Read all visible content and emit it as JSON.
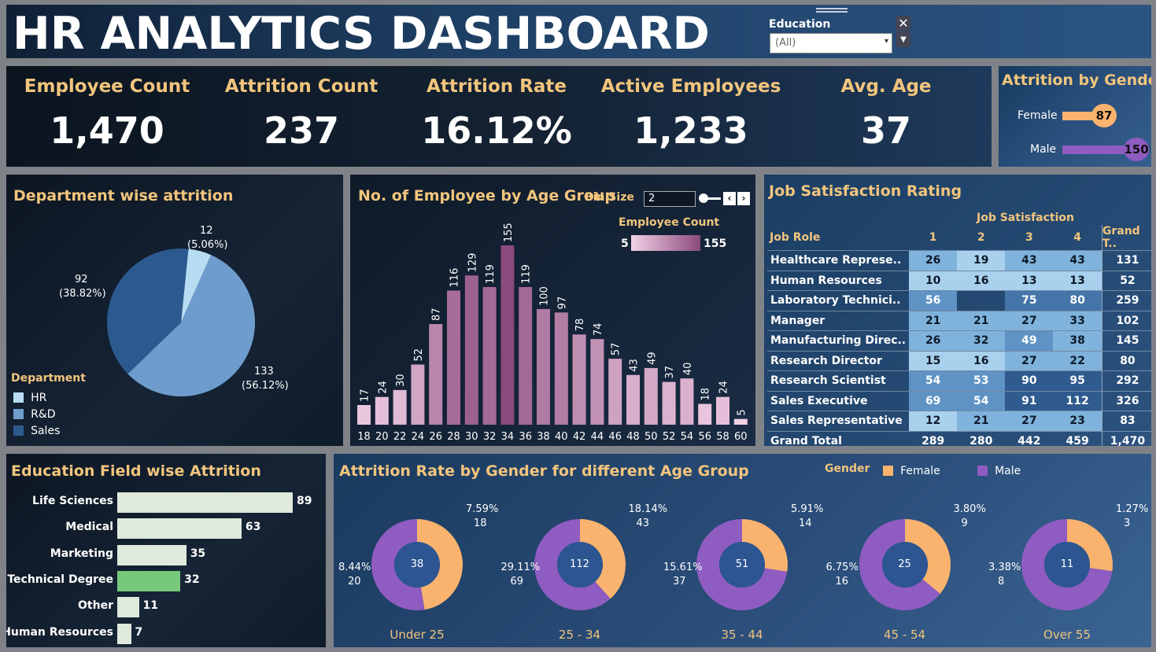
{
  "title": "HR ANALYTICS DASHBOARD",
  "filter": {
    "label": "Education",
    "value": "(All)"
  },
  "kpis": [
    {
      "label": "Employee Count",
      "value": "1,470"
    },
    {
      "label": "Attrition Count",
      "value": "237"
    },
    {
      "label": "Attrition Rate",
      "value": "16.12%"
    },
    {
      "label": "Active Employees",
      "value": "1,233"
    },
    {
      "label": "Avg. Age",
      "value": "37"
    }
  ],
  "gender_attrition": {
    "title": "Attrition by Gender",
    "rows": [
      {
        "label": "Female",
        "value": "87"
      },
      {
        "label": "Male",
        "value": "150"
      }
    ]
  },
  "department": {
    "title": "Department wise attrition",
    "legend_title": "Department",
    "items": [
      {
        "name": "HR",
        "count": "12",
        "pct": "(5.06%)",
        "value": 12,
        "color": "#b8dcf2"
      },
      {
        "name": "R&D",
        "count": "133",
        "pct": "(56.12%)",
        "value": 133,
        "color": "#6e9dcd"
      },
      {
        "name": "Sales",
        "count": "92",
        "pct": "(38.82%)",
        "value": 92,
        "color": "#2c5a8e"
      }
    ]
  },
  "age_group": {
    "title": "No. of Employee by Age Group",
    "bin_label": "Bin Size",
    "bin_value": "2",
    "legend_title": "Employee Count",
    "legend_min": "5",
    "legend_max": "155"
  },
  "job_satisfaction": {
    "title": "Job Satisfaction Rating",
    "col_group": "Job Satisfaction",
    "row_header": "Job Role",
    "cols": [
      "1",
      "2",
      "3",
      "4",
      "Grand T.."
    ],
    "rows": [
      {
        "role": "Healthcare Represe..",
        "vals": [
          "26",
          "19",
          "43",
          "43"
        ],
        "total": "131"
      },
      {
        "role": "Human Resources",
        "vals": [
          "10",
          "16",
          "13",
          "13"
        ],
        "total": "52"
      },
      {
        "role": "Laboratory Technici..",
        "vals": [
          "56",
          "",
          "75",
          "80"
        ],
        "total": "259"
      },
      {
        "role": "Manager",
        "vals": [
          "21",
          "21",
          "27",
          "33"
        ],
        "total": "102"
      },
      {
        "role": "Manufacturing Direc..",
        "vals": [
          "26",
          "32",
          "49",
          "38"
        ],
        "total": "145"
      },
      {
        "role": "Research Director",
        "vals": [
          "15",
          "16",
          "27",
          "22"
        ],
        "total": "80"
      },
      {
        "role": "Research Scientist",
        "vals": [
          "54",
          "53",
          "90",
          "95"
        ],
        "total": "292"
      },
      {
        "role": "Sales Executive",
        "vals": [
          "69",
          "54",
          "91",
          "112"
        ],
        "total": "326"
      },
      {
        "role": "Sales Representative",
        "vals": [
          "12",
          "21",
          "27",
          "23"
        ],
        "total": "83"
      }
    ],
    "grand_total": {
      "label": "Grand Total",
      "vals": [
        "289",
        "280",
        "442",
        "459"
      ],
      "total": "1,470"
    }
  },
  "education_field": {
    "title": "Education Field wise Attrition",
    "items": [
      {
        "label": "Life Sciences",
        "value": "89"
      },
      {
        "label": "Medical",
        "value": "63"
      },
      {
        "label": "Marketing",
        "value": "35"
      },
      {
        "label": "Technical Degree",
        "value": "32"
      },
      {
        "label": "Other",
        "value": "11"
      },
      {
        "label": "Human Resources",
        "value": "7"
      }
    ]
  },
  "gender_age": {
    "title": "Attrition Rate by Gender for different Age Group",
    "legend_title": "Gender",
    "legend": [
      {
        "label": "Female",
        "color": "#f9b36e"
      },
      {
        "label": "Male",
        "color": "#8f5cc1"
      }
    ],
    "groups": [
      {
        "name": "Under 25",
        "total": "38",
        "female": 18,
        "male": 20,
        "f_pct": "7.59%",
        "f_count": "18",
        "m_pct": "8.44%",
        "m_count": "20"
      },
      {
        "name": "25 - 34",
        "total": "112",
        "female": 43,
        "male": 69,
        "f_pct": "18.14%",
        "f_count": "43",
        "m_pct": "29.11%",
        "m_count": "69"
      },
      {
        "name": "35 - 44",
        "total": "51",
        "female": 14,
        "male": 37,
        "f_pct": "5.91%",
        "f_count": "14",
        "m_pct": "15.61%",
        "m_count": "37"
      },
      {
        "name": "45 - 54",
        "total": "25",
        "female": 9,
        "male": 16,
        "f_pct": "3.80%",
        "f_count": "9",
        "m_pct": "6.75%",
        "m_count": "16"
      },
      {
        "name": "Over 55",
        "total": "11",
        "female": 3,
        "male": 8,
        "f_pct": "1.27%",
        "f_count": "3",
        "m_pct": "3.38%",
        "m_count": "8"
      }
    ]
  },
  "chart_data": {
    "type": "bar",
    "title": "No. of Employee by Age Group",
    "categories": [
      "18",
      "20",
      "22",
      "24",
      "26",
      "28",
      "30",
      "32",
      "34",
      "36",
      "38",
      "40",
      "42",
      "44",
      "46",
      "48",
      "50",
      "52",
      "54",
      "56",
      "58",
      "60"
    ],
    "values": [
      17,
      24,
      30,
      52,
      87,
      116,
      129,
      119,
      155,
      119,
      100,
      97,
      78,
      74,
      57,
      43,
      49,
      37,
      40,
      18,
      24,
      5
    ],
    "ylim": [
      0,
      155
    ],
    "grid": false
  }
}
